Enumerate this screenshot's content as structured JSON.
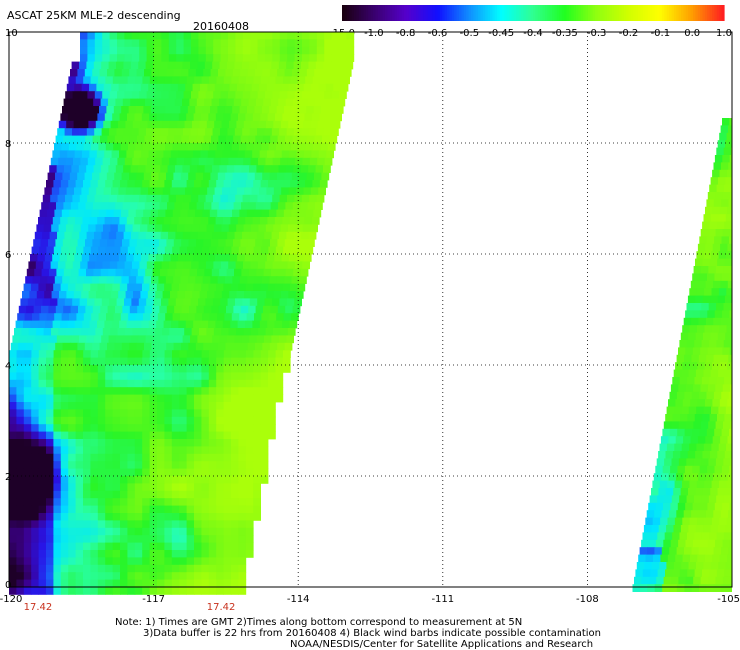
{
  "title": "ASCAT 25KM MLE-2 descending",
  "date": "20160408",
  "colorbar": {
    "labels": [
      "-15.0",
      "-1.0",
      "-0.8",
      "-0.6",
      "-0.5",
      "-0.45",
      "-0.4",
      "-0.35",
      "-0.3",
      "-0.2",
      "-0.1",
      "0.0",
      "1.0"
    ],
    "colors": [
      "#1a0010",
      "#3a0070",
      "#5500cc",
      "#1010ff",
      "#1090ff",
      "#00ffff",
      "#30ff90",
      "#20ff20",
      "#90ff10",
      "#d0ff00",
      "#ffff00",
      "#ffa000",
      "#ff2020"
    ]
  },
  "axes": {
    "x_ticks": [
      "-120",
      "-117",
      "-114",
      "-111",
      "-108",
      "-105"
    ],
    "y_ticks": [
      "0",
      "2",
      "4",
      "6",
      "8",
      "10"
    ],
    "x_range": [
      -120,
      -105
    ],
    "y_range": [
      0,
      10
    ]
  },
  "time_labels": [
    {
      "text": "17.42",
      "lon": -119.4
    },
    {
      "text": "17.42",
      "lon": -115.6
    }
  ],
  "notes": {
    "line1": "Note: 1) Times are GMT 2)Times along bottom correspond to measurement at 5N",
    "line2": "3)Data buffer is 22 hrs from 20160408 4) Black wind barbs indicate possible contamination",
    "line3": "NOAA/NESDIS/Center for Satellite Applications and Research"
  }
}
